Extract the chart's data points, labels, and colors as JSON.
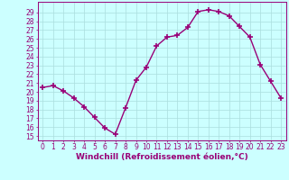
{
  "x": [
    0,
    1,
    2,
    3,
    4,
    5,
    6,
    7,
    8,
    9,
    10,
    11,
    12,
    13,
    14,
    15,
    16,
    17,
    18,
    19,
    20,
    21,
    22,
    23
  ],
  "y": [
    20.5,
    20.7,
    20.1,
    19.3,
    18.3,
    17.1,
    15.9,
    15.2,
    18.2,
    21.3,
    22.8,
    25.2,
    26.2,
    26.4,
    27.3,
    29.1,
    29.3,
    29.1,
    28.6,
    27.4,
    26.2,
    23.1,
    21.2,
    19.3
  ],
  "line_color": "#990077",
  "marker": "+",
  "markersize": 4,
  "markeredgewidth": 1.2,
  "linewidth": 1.0,
  "background_color": "#ccffff",
  "grid_color": "#aadddd",
  "xlabel": "Windchill (Refroidissement éolien,°C)",
  "xlabel_fontsize": 6.5,
  "xlabel_fontweight": "bold",
  "ylim": [
    14.5,
    30.2
  ],
  "xlim": [
    -0.5,
    23.5
  ],
  "yticks": [
    15,
    16,
    17,
    18,
    19,
    20,
    21,
    22,
    23,
    24,
    25,
    26,
    27,
    28,
    29
  ],
  "xticks": [
    0,
    1,
    2,
    3,
    4,
    5,
    6,
    7,
    8,
    9,
    10,
    11,
    12,
    13,
    14,
    15,
    16,
    17,
    18,
    19,
    20,
    21,
    22,
    23
  ],
  "tick_color": "#990077",
  "tick_fontsize": 5.5,
  "spine_color": "#990077"
}
